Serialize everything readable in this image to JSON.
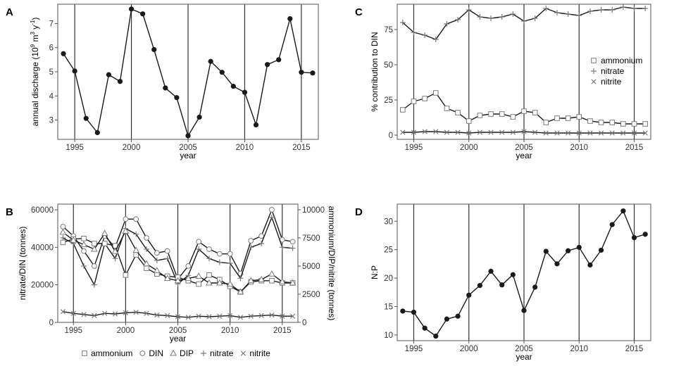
{
  "colors": {
    "line": "#1a1a1a",
    "frame": "#555555",
    "vline": "#333333",
    "gray": "#7a7a7a"
  },
  "legend_b": {
    "items": [
      {
        "symbol": "square",
        "label": "ammonium"
      },
      {
        "symbol": "circle",
        "label": "DIN"
      },
      {
        "symbol": "triangle",
        "label": "DIP"
      },
      {
        "symbol": "plus",
        "label": "nitrate"
      },
      {
        "symbol": "cross",
        "label": "nitrite"
      }
    ]
  },
  "legend_c": {
    "items": [
      {
        "symbol": "square",
        "label": "ammonium"
      },
      {
        "symbol": "plus",
        "label": "nitrate"
      },
      {
        "symbol": "cross",
        "label": "nitrite"
      }
    ]
  },
  "chart_data": [
    {
      "panel": "A",
      "type": "line",
      "xlabel": "year",
      "ylabel_parts": {
        "pre": "annual discharge (10",
        "sup1": "9",
        "mid1": " m",
        "sup2": "3",
        "mid2": " y",
        "sup3": "-1",
        "post": ")"
      },
      "xlim": [
        1993.5,
        2016.5
      ],
      "ylim": [
        2.2,
        7.8
      ],
      "xticks": [
        1995,
        2000,
        2005,
        2010,
        2015
      ],
      "yticks": [
        3,
        4,
        5,
        6,
        7
      ],
      "vlines": [
        1995,
        2000,
        2005,
        2010,
        2015
      ],
      "series": [
        {
          "name": "discharge",
          "marker": "dot",
          "x": [
            1994,
            1995,
            1996,
            1997,
            1998,
            1999,
            2000,
            2001,
            2002,
            2003,
            2004,
            2005,
            2006,
            2007,
            2008,
            2009,
            2010,
            2011,
            2012,
            2013,
            2014,
            2015,
            2016
          ],
          "y": [
            5.75,
            5.03,
            3.07,
            2.48,
            4.88,
            4.6,
            7.6,
            7.4,
            5.92,
            4.33,
            3.93,
            2.35,
            3.12,
            5.43,
            4.98,
            4.4,
            4.15,
            2.8,
            5.3,
            5.5,
            7.2,
            4.98,
            4.95
          ]
        }
      ]
    },
    {
      "panel": "B",
      "type": "line",
      "xlabel": "year",
      "ylabel": "nitrate/DIN (tonnes)",
      "ylabel_right": "ammonium/DIP/nitrite (tonnes)",
      "xlim": [
        1993.5,
        2016.5
      ],
      "ylim": [
        0,
        63000
      ],
      "ylim_right": [
        0,
        10500
      ],
      "xticks": [
        1995,
        2000,
        2005,
        2010,
        2015
      ],
      "yticks": [
        0,
        20000,
        40000,
        60000
      ],
      "yticks_right": [
        0,
        2500,
        5000,
        7500,
        10000
      ],
      "vlines": [
        1995,
        2000,
        2005,
        2010,
        2015
      ],
      "series": [
        {
          "name": "DIN",
          "marker": "circle",
          "axis": "left",
          "x": [
            1994,
            1995,
            1996,
            1997,
            1998,
            1999,
            2000,
            2001,
            2002,
            2003,
            2004,
            2005,
            2006,
            2007,
            2008,
            2009,
            2010,
            2011,
            2012,
            2013,
            2014,
            2015,
            2016
          ],
          "y": [
            51000,
            46000,
            38000,
            30000,
            46000,
            40000,
            55000,
            55000,
            45000,
            37000,
            38000,
            23000,
            30000,
            43000,
            39000,
            36500,
            36500,
            26000,
            43500,
            46000,
            60000,
            44000,
            43000
          ]
        },
        {
          "name": "nitrate",
          "marker": "plus",
          "axis": "left",
          "x": [
            1994,
            1995,
            1996,
            1997,
            1998,
            1999,
            2000,
            2001,
            2002,
            2003,
            2004,
            2005,
            2006,
            2007,
            2008,
            2009,
            2010,
            2011,
            2012,
            2013,
            2014,
            2015,
            2016
          ],
          "y": [
            45000,
            42000,
            30000,
            20000,
            42000,
            34000,
            50000,
            47000,
            39000,
            33000,
            34000,
            20500,
            25000,
            39000,
            34000,
            32000,
            31500,
            23500,
            40000,
            42000,
            56000,
            40000,
            39500
          ]
        },
        {
          "name": "ammonium",
          "marker": "square",
          "axis": "right",
          "x": [
            1994,
            1995,
            1996,
            1997,
            1998,
            1999,
            2000,
            2001,
            2002,
            2003,
            2004,
            2005,
            2006,
            2007,
            2008,
            2009,
            2010,
            2011,
            2012,
            2013,
            2014,
            2015,
            2016
          ],
          "y": [
            7100,
            7400,
            7450,
            7000,
            7000,
            6800,
            4200,
            6000,
            4800,
            4300,
            4100,
            4000,
            3700,
            3400,
            4200,
            3800,
            3200,
            2700,
            3600,
            3700,
            3700,
            3500,
            3500
          ]
        },
        {
          "name": "DIP",
          "marker": "triangle",
          "axis": "right",
          "x": [
            1994,
            1995,
            1996,
            1997,
            1998,
            1999,
            2000,
            2001,
            2002,
            2003,
            2004,
            2005,
            2006,
            2007,
            2008,
            2009,
            2010,
            2011,
            2012,
            2013,
            2014,
            2015,
            2016
          ],
          "y": [
            8000,
            7300,
            6900,
            6500,
            7900,
            6300,
            8100,
            6400,
            5200,
            4600,
            3900,
            3700,
            3900,
            4100,
            3500,
            3500,
            3400,
            2700,
            3700,
            3800,
            4300,
            3600,
            3500
          ]
        },
        {
          "name": "nitrite",
          "marker": "cross",
          "axis": "right",
          "x": [
            1994,
            1995,
            1996,
            1997,
            1998,
            1999,
            2000,
            2001,
            2002,
            2003,
            2004,
            2005,
            2006,
            2007,
            2008,
            2009,
            2010,
            2011,
            2012,
            2013,
            2014,
            2015,
            2016
          ],
          "y": [
            950,
            800,
            700,
            600,
            800,
            750,
            850,
            900,
            800,
            650,
            600,
            500,
            450,
            550,
            500,
            550,
            600,
            450,
            550,
            600,
            650,
            550,
            550
          ]
        }
      ]
    },
    {
      "panel": "C",
      "type": "line",
      "xlabel": "year",
      "ylabel": "% contribution to DIN",
      "xlim": [
        1993.5,
        2016.5
      ],
      "ylim": [
        -3,
        93
      ],
      "xticks": [
        1995,
        2000,
        2005,
        2010,
        2015
      ],
      "yticks": [
        0,
        25,
        50,
        75
      ],
      "vlines": [
        1995,
        2000,
        2005,
        2010,
        2015
      ],
      "series": [
        {
          "name": "nitrate",
          "marker": "plus",
          "x": [
            1994,
            1995,
            1996,
            1997,
            1998,
            1999,
            2000,
            2001,
            2002,
            2003,
            2004,
            2005,
            2006,
            2007,
            2008,
            2009,
            2010,
            2011,
            2012,
            2013,
            2014,
            2015,
            2016
          ],
          "y": [
            80,
            73,
            71,
            68,
            79,
            82,
            89,
            84,
            83,
            84,
            86,
            81,
            83,
            90,
            87,
            86,
            85,
            88,
            89,
            89,
            91,
            90,
            90
          ]
        },
        {
          "name": "ammonium",
          "marker": "square",
          "x": [
            1994,
            1995,
            1996,
            1997,
            1998,
            1999,
            2000,
            2001,
            2002,
            2003,
            2004,
            2005,
            2006,
            2007,
            2008,
            2009,
            2010,
            2011,
            2012,
            2013,
            2014,
            2015,
            2016
          ],
          "y": [
            18,
            24,
            26,
            30,
            19,
            16,
            10,
            14,
            15,
            15,
            13,
            17,
            16,
            9,
            12,
            12,
            13,
            10,
            9,
            9,
            8,
            8,
            8
          ]
        },
        {
          "name": "nitrite",
          "marker": "cross",
          "x": [
            1994,
            1995,
            1996,
            1997,
            1998,
            1999,
            2000,
            2001,
            2002,
            2003,
            2004,
            2005,
            2006,
            2007,
            2008,
            2009,
            2010,
            2011,
            2012,
            2013,
            2014,
            2015,
            2016
          ],
          "y": [
            2,
            2,
            2.5,
            2.5,
            2,
            2,
            1.5,
            2,
            2,
            2,
            2,
            2.5,
            2,
            1.5,
            1.5,
            1.5,
            1.5,
            1.5,
            1.5,
            1.5,
            1.5,
            1.5,
            1.5
          ]
        }
      ]
    },
    {
      "panel": "D",
      "type": "line",
      "xlabel": "year",
      "ylabel": "N:P",
      "xlim": [
        1993.5,
        2016.5
      ],
      "ylim": [
        9,
        33
      ],
      "xticks": [
        1995,
        2000,
        2005,
        2010,
        2015
      ],
      "yticks": [
        10,
        15,
        20,
        25,
        30
      ],
      "vlines": [
        1995,
        2000,
        2005,
        2010,
        2015
      ],
      "series": [
        {
          "name": "N:P",
          "marker": "dot",
          "x": [
            1994,
            1995,
            1996,
            1997,
            1998,
            1999,
            2000,
            2001,
            2002,
            2003,
            2004,
            2005,
            2006,
            2007,
            2008,
            2009,
            2010,
            2011,
            2012,
            2013,
            2014,
            2015,
            2016
          ],
          "y": [
            14.2,
            14.0,
            11.2,
            9.8,
            12.8,
            13.3,
            17.0,
            18.7,
            21.2,
            18.8,
            20.6,
            14.3,
            18.4,
            24.7,
            22.5,
            24.8,
            25.4,
            22.3,
            24.9,
            29.4,
            31.8,
            27.1,
            27.7
          ]
        }
      ]
    }
  ]
}
